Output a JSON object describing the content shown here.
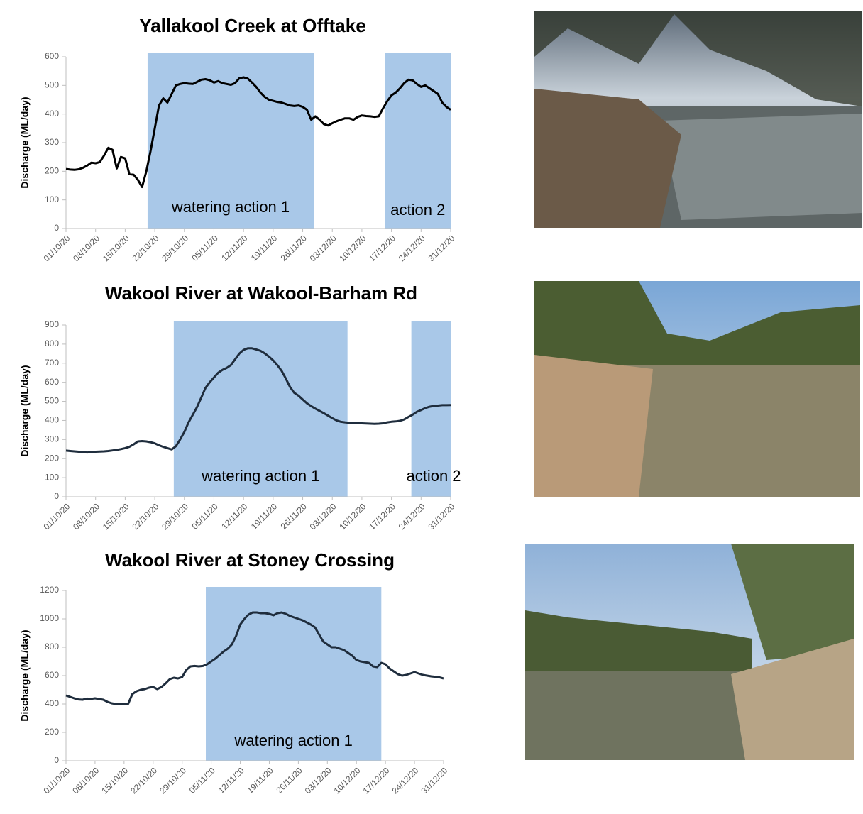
{
  "chart_data": [
    {
      "type": "line",
      "title": "Yallakool Creek at Offtake",
      "y_label": "Discharge (ML/day)",
      "categories": [
        "01/10/20",
        null,
        null,
        null,
        null,
        null,
        null,
        "08/10/20",
        null,
        null,
        null,
        null,
        null,
        null,
        "15/10/20",
        null,
        null,
        null,
        null,
        null,
        null,
        "22/10/20",
        null,
        null,
        null,
        null,
        null,
        null,
        "29/10/20",
        null,
        null,
        null,
        null,
        null,
        null,
        "05/11/20",
        null,
        null,
        null,
        null,
        null,
        null,
        "12/11/20",
        null,
        null,
        null,
        null,
        null,
        null,
        "19/11/20",
        null,
        null,
        null,
        null,
        null,
        null,
        "26/11/20",
        null,
        null,
        null,
        null,
        null,
        null,
        "03/12/20",
        null,
        null,
        null,
        null,
        null,
        null,
        "10/12/20",
        null,
        null,
        null,
        null,
        null,
        null,
        "17/12/20",
        null,
        null,
        null,
        null,
        null,
        null,
        "24/12/20",
        null,
        null,
        null,
        null,
        null,
        null,
        "31/12/20"
      ],
      "series": [
        {
          "color": "#000000",
          "values": [
            208,
            206,
            205,
            207,
            212,
            220,
            230,
            228,
            232,
            255,
            282,
            275,
            210,
            250,
            245,
            190,
            188,
            170,
            145,
            200,
            270,
            350,
            430,
            455,
            440,
            470,
            500,
            505,
            508,
            506,
            505,
            512,
            520,
            522,
            518,
            510,
            515,
            508,
            505,
            502,
            508,
            525,
            528,
            524,
            510,
            495,
            475,
            460,
            450,
            446,
            442,
            440,
            435,
            430,
            428,
            430,
            425,
            415,
            380,
            392,
            380,
            365,
            360,
            368,
            375,
            380,
            385,
            385,
            380,
            390,
            395,
            393,
            392,
            390,
            392,
            420,
            445,
            465,
            475,
            490,
            508,
            520,
            518,
            505,
            495,
            500,
            490,
            480,
            470,
            440,
            425,
            415
          ]
        }
      ],
      "shaded_spans": [
        {
          "label": "watering action 1",
          "xlim": [
            19.3,
            58.6
          ]
        },
        {
          "label": "action 2",
          "xlim": [
            75.5,
            91
          ]
        }
      ],
      "span_color": "#a9c8e8",
      "ylim": [
        0,
        600
      ],
      "yticks": [
        0,
        100,
        200,
        300,
        400,
        500,
        600
      ]
    },
    {
      "type": "line",
      "title": "Wakool River at Wakool-Barham Rd",
      "y_label": "Discharge (ML/day)",
      "categories": [
        "01/10/20",
        null,
        null,
        null,
        null,
        null,
        null,
        "08/10/20",
        null,
        null,
        null,
        null,
        null,
        null,
        "15/10/20",
        null,
        null,
        null,
        null,
        null,
        null,
        "22/10/20",
        null,
        null,
        null,
        null,
        null,
        null,
        "29/10/20",
        null,
        null,
        null,
        null,
        null,
        null,
        "05/11/20",
        null,
        null,
        null,
        null,
        null,
        null,
        "12/11/20",
        null,
        null,
        null,
        null,
        null,
        null,
        "19/11/20",
        null,
        null,
        null,
        null,
        null,
        null,
        "26/11/20",
        null,
        null,
        null,
        null,
        null,
        null,
        "03/12/20",
        null,
        null,
        null,
        null,
        null,
        null,
        "10/12/20",
        null,
        null,
        null,
        null,
        null,
        null,
        "17/12/20",
        null,
        null,
        null,
        null,
        null,
        null,
        "24/12/20",
        null,
        null,
        null,
        null,
        null,
        null,
        "31/12/20"
      ],
      "series": [
        {
          "color": "#1f2d3d",
          "values": [
            242,
            240,
            238,
            236,
            234,
            232,
            234,
            236,
            237,
            238,
            240,
            243,
            246,
            250,
            255,
            262,
            275,
            290,
            292,
            290,
            286,
            280,
            270,
            262,
            255,
            248,
            265,
            300,
            340,
            390,
            430,
            470,
            520,
            570,
            600,
            625,
            650,
            665,
            675,
            690,
            720,
            750,
            770,
            778,
            778,
            772,
            765,
            752,
            735,
            715,
            690,
            660,
            620,
            575,
            545,
            530,
            510,
            490,
            475,
            462,
            450,
            438,
            425,
            412,
            400,
            393,
            390,
            388,
            387,
            386,
            385,
            384,
            383,
            382,
            383,
            385,
            390,
            393,
            395,
            398,
            405,
            418,
            430,
            445,
            455,
            465,
            472,
            476,
            478,
            480,
            480,
            481
          ]
        }
      ],
      "shaded_spans": [
        {
          "label": "watering action 1",
          "xlim": [
            25.5,
            66.6
          ]
        },
        {
          "label": "action 2",
          "xlim": [
            81.7,
            91
          ]
        }
      ],
      "span_color": "#a9c8e8",
      "ylim": [
        0,
        900
      ],
      "yticks": [
        0,
        100,
        200,
        300,
        400,
        500,
        600,
        700,
        800,
        900
      ]
    },
    {
      "type": "line",
      "title": "Wakool River at Stoney Crossing",
      "y_label": "Discharge (ML/day)",
      "categories": [
        "01/10/20",
        null,
        null,
        null,
        null,
        null,
        null,
        "08/10/20",
        null,
        null,
        null,
        null,
        null,
        null,
        "15/10/20",
        null,
        null,
        null,
        null,
        null,
        null,
        "22/10/20",
        null,
        null,
        null,
        null,
        null,
        null,
        "29/10/20",
        null,
        null,
        null,
        null,
        null,
        null,
        "05/11/20",
        null,
        null,
        null,
        null,
        null,
        null,
        "12/11/20",
        null,
        null,
        null,
        null,
        null,
        null,
        "19/11/20",
        null,
        null,
        null,
        null,
        null,
        null,
        "26/11/20",
        null,
        null,
        null,
        null,
        null,
        null,
        "03/12/20",
        null,
        null,
        null,
        null,
        null,
        null,
        "10/12/20",
        null,
        null,
        null,
        null,
        null,
        null,
        "17/12/20",
        null,
        null,
        null,
        null,
        null,
        null,
        "24/12/20",
        null,
        null,
        null,
        null,
        null,
        null,
        "31/12/20"
      ],
      "series": [
        {
          "color": "#1f2d3d",
          "values": [
            460,
            450,
            440,
            432,
            430,
            438,
            436,
            440,
            435,
            430,
            415,
            405,
            400,
            400,
            400,
            402,
            470,
            490,
            500,
            505,
            515,
            520,
            505,
            520,
            545,
            575,
            585,
            580,
            590,
            640,
            665,
            668,
            665,
            668,
            680,
            700,
            720,
            745,
            770,
            790,
            820,
            880,
            960,
            1000,
            1030,
            1045,
            1045,
            1040,
            1040,
            1035,
            1025,
            1040,
            1045,
            1035,
            1020,
            1010,
            1000,
            990,
            975,
            960,
            940,
            890,
            840,
            820,
            800,
            800,
            790,
            780,
            760,
            740,
            710,
            700,
            695,
            690,
            665,
            660,
            690,
            680,
            650,
            630,
            610,
            600,
            605,
            615,
            625,
            615,
            605,
            600,
            595,
            592,
            588,
            580
          ]
        }
      ],
      "shaded_spans": [
        {
          "label": "watering action 1",
          "xlim": [
            33.7,
            76
          ]
        }
      ],
      "span_color": "#a9c8e8",
      "ylim": [
        0,
        1200
      ],
      "yticks": [
        0,
        200,
        400,
        600,
        800,
        1000,
        1200
      ]
    }
  ]
}
